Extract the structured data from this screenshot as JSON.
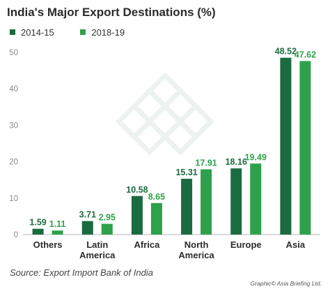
{
  "chart_data": {
    "type": "bar",
    "title": "India's Major Export Destinations (%)",
    "categories": [
      "Others",
      "Latin America",
      "Africa",
      "North America",
      "Europe",
      "Asia"
    ],
    "category_lines": [
      [
        "Others"
      ],
      [
        "Latin",
        "America"
      ],
      [
        "Africa"
      ],
      [
        "North",
        "America"
      ],
      [
        "Europe"
      ],
      [
        "Asia"
      ]
    ],
    "series": [
      {
        "name": "2014-15",
        "values": [
          1.59,
          3.71,
          10.58,
          15.31,
          18.16,
          48.52
        ],
        "labels": [
          "1.59",
          "3.71",
          "10.58",
          "15.31",
          "18.16",
          "48.52"
        ],
        "color": "#1b6b40"
      },
      {
        "name": "2018-19",
        "values": [
          1.11,
          2.95,
          8.65,
          17.91,
          19.49,
          47.62
        ],
        "labels": [
          "1.11",
          "2.95",
          "8.65",
          "17.91",
          "19.49",
          "47.62"
        ],
        "color": "#2ea14a"
      }
    ],
    "ylim": [
      0,
      50
    ],
    "yticks": [
      0,
      10,
      20,
      30,
      40,
      50
    ],
    "grid": false,
    "legend_position": "top-left",
    "xlabel": "",
    "ylabel": ""
  },
  "source": "Source: Export Import Bank of India",
  "credit": "Graphic© Asia Briefing Ltd."
}
